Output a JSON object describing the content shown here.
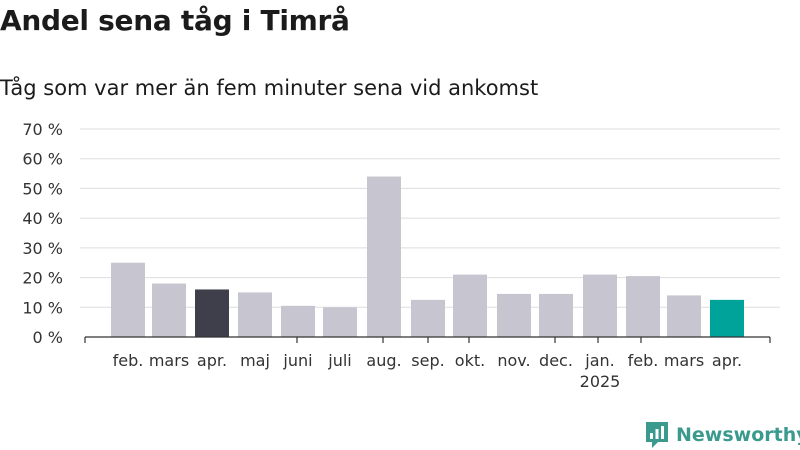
{
  "title": "Andel sena tåg i Timrå",
  "subtitle": "Tåg som var mer än fem minuter sena vid ankomst",
  "brand": {
    "name": "Newsworthy",
    "color": "#3a9a8e",
    "icon": "newsworthy-logo-icon"
  },
  "colors": {
    "bar_default": "#c7c6d0",
    "bar_highlight_last_year": "#3f3e4b",
    "bar_highlight_current": "#00a39a",
    "grid": "#dddddd",
    "axis": "#333333"
  },
  "chart_data": {
    "type": "bar",
    "title": "Andel sena tåg i Timrå",
    "subtitle": "Tåg som var mer än fem minuter sena vid ankomst",
    "xlabel": "",
    "ylabel": "",
    "categories": [
      "feb.",
      "mars",
      "apr.",
      "maj",
      "juni",
      "juli",
      "aug.",
      "sep.",
      "okt.",
      "nov.",
      "dec.",
      "jan.",
      "feb.",
      "mars",
      "apr."
    ],
    "year_labels": [
      "",
      "",
      "",
      "",
      "",
      "",
      "",
      "",
      "",
      "",
      "",
      "2025",
      "",
      "",
      ""
    ],
    "values": [
      25,
      18,
      16,
      15,
      10.5,
      10,
      54,
      12.5,
      21,
      14.5,
      14.5,
      21,
      20.5,
      14,
      12.5
    ],
    "highlight": [
      "default",
      "default",
      "last_year",
      "default",
      "default",
      "default",
      "default",
      "default",
      "default",
      "default",
      "default",
      "default",
      "default",
      "default",
      "current"
    ],
    "ylim": [
      0,
      70
    ],
    "yticks": [
      0,
      10,
      20,
      30,
      40,
      50,
      60,
      70
    ],
    "ytick_labels": [
      "0 %",
      "10 %",
      "20 %",
      "30 %",
      "40 %",
      "50 %",
      "60 %",
      "70 %"
    ],
    "grid": true,
    "legend": "none"
  }
}
